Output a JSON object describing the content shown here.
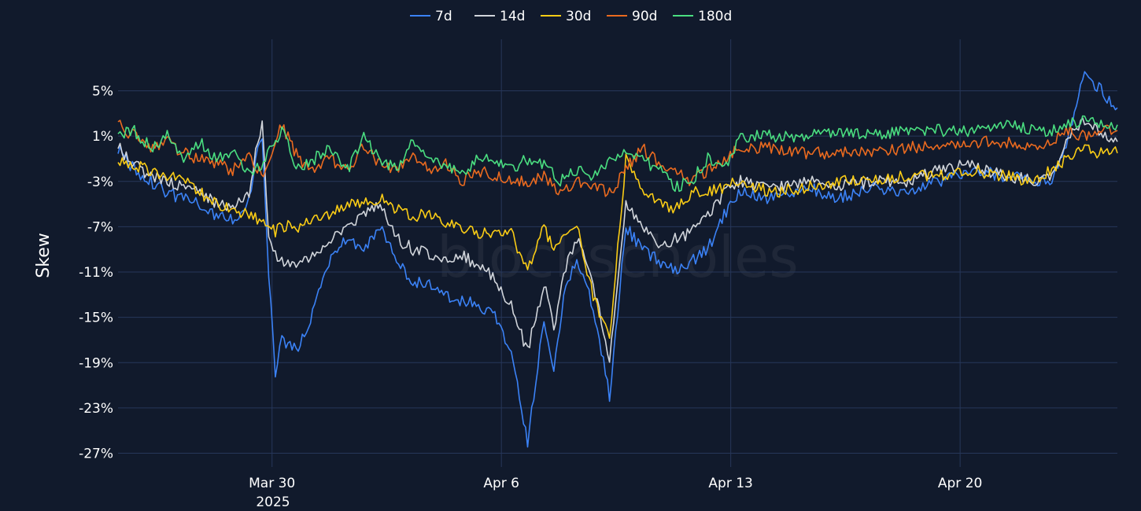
{
  "chart_data": {
    "type": "line",
    "watermark": "blockscholes",
    "ylabel": "Skew",
    "xlabel": "",
    "ylim": [
      -27.5,
      9.5
    ],
    "xlim": [
      0,
      30.5
    ],
    "y_ticks": [
      5,
      1,
      -3,
      -7,
      -11,
      -15,
      -19,
      -23,
      -27
    ],
    "y_tick_labels": [
      "5%",
      "1%",
      "-3%",
      "-7%",
      "-11%",
      "-15%",
      "-19%",
      "-23%",
      "-27%"
    ],
    "x_ticks": [
      4.7,
      11.7,
      18.7,
      25.7
    ],
    "x_tick_labels": [
      "Mar 30",
      "Apr 6",
      "Apr 13",
      "Apr 20"
    ],
    "x_sublabel": "2025",
    "legend_position": "top-center",
    "colors": {
      "background": "#111a2c",
      "grid": "#27375a",
      "series": [
        "#3b82f6",
        "#d1d5db",
        "#facc15",
        "#ea6a1f",
        "#4ade80"
      ]
    },
    "series": [
      {
        "name": "7d",
        "x": [
          0,
          0.5,
          1,
          1.5,
          2,
          2.5,
          3,
          3.5,
          4,
          4.2,
          4.4,
          4.6,
          4.8,
          5,
          5.5,
          6,
          6.5,
          7,
          7.5,
          8,
          8.5,
          9,
          9.5,
          10,
          10.5,
          11,
          11.5,
          12,
          12.5,
          13,
          13.3,
          13.6,
          14,
          14.5,
          15,
          15.5,
          16,
          16.5,
          17,
          17.5,
          18,
          18.5,
          19,
          20,
          21,
          22,
          23,
          24,
          25,
          26,
          27,
          28,
          28.5,
          29,
          29.5,
          30,
          30.5
        ],
        "values": [
          0,
          -2,
          -3,
          -4,
          -4.5,
          -5,
          -6,
          -6.5,
          -4.5,
          -1,
          1,
          -11,
          -20,
          -17,
          -18,
          -14,
          -10,
          -8,
          -9,
          -7,
          -10,
          -12,
          -12,
          -13,
          -13.5,
          -14,
          -15,
          -18,
          -26,
          -15,
          -20,
          -13,
          -10,
          -14,
          -22,
          -7,
          -9,
          -10,
          -11,
          -10,
          -9,
          -6,
          -4,
          -4.5,
          -3.5,
          -4.5,
          -3.5,
          -4,
          -3,
          -2,
          -2.5,
          -3,
          -3,
          1,
          6.5,
          5,
          3.5
        ]
      },
      {
        "name": "14d",
        "x": [
          0,
          0.5,
          1,
          1.5,
          2,
          2.5,
          3,
          3.5,
          4,
          4.2,
          4.4,
          4.6,
          4.8,
          5,
          5.5,
          6,
          6.5,
          7,
          7.5,
          8,
          8.5,
          9,
          9.5,
          10,
          10.5,
          11,
          11.5,
          12,
          12.5,
          13,
          13.3,
          13.6,
          14,
          14.5,
          15,
          15.5,
          16,
          16.5,
          17,
          17.5,
          18,
          18.5,
          19,
          20,
          21,
          22,
          23,
          24,
          25,
          26,
          27,
          28,
          28.5,
          29,
          29.5,
          30,
          30.5
        ],
        "values": [
          0,
          -1.5,
          -2.5,
          -3,
          -3.5,
          -4,
          -5,
          -5.5,
          -4,
          -0.5,
          2,
          -8,
          -9.5,
          -10,
          -10.5,
          -9.5,
          -8,
          -7,
          -6,
          -5,
          -8,
          -9,
          -9.5,
          -10,
          -9.5,
          -10.5,
          -11.5,
          -14,
          -18,
          -12,
          -16,
          -11,
          -8,
          -12,
          -19,
          -5,
          -7,
          -9,
          -8,
          -7.5,
          -6,
          -4,
          -3,
          -3.5,
          -3,
          -3.5,
          -3,
          -3,
          -2,
          -1.5,
          -2.5,
          -3,
          -2.5,
          1,
          2.5,
          1.5,
          0.5
        ]
      },
      {
        "name": "30d",
        "x": [
          0,
          0.5,
          1,
          1.5,
          2,
          2.5,
          3,
          3.5,
          4,
          4.5,
          4.8,
          5,
          5.5,
          6,
          6.5,
          7,
          7.5,
          8,
          8.5,
          9,
          9.5,
          10,
          10.5,
          11,
          11.5,
          12,
          12.5,
          13,
          13.3,
          13.6,
          14,
          14.5,
          15,
          15.5,
          16,
          16.5,
          17,
          17.5,
          18,
          18.5,
          19,
          20,
          21,
          22,
          23,
          24,
          25,
          26,
          27,
          28,
          28.5,
          29,
          29.5,
          30,
          30.5
        ],
        "values": [
          -1,
          -1.5,
          -2,
          -2.5,
          -3,
          -4,
          -5,
          -5.5,
          -6,
          -6.5,
          -7.5,
          -7,
          -7,
          -6.5,
          -6,
          -5,
          -5,
          -4.5,
          -5.5,
          -6,
          -6,
          -6.5,
          -7,
          -7.5,
          -7.5,
          -7.5,
          -11,
          -7,
          -9,
          -8,
          -7,
          -13,
          -17,
          -1,
          -4,
          -5,
          -5.5,
          -4,
          -4,
          -3.5,
          -3,
          -4,
          -3.5,
          -3,
          -3,
          -2.5,
          -2.5,
          -2,
          -2.5,
          -3,
          -2,
          -1,
          0,
          -0.5,
          -0.5
        ]
      },
      {
        "name": "90d",
        "x": [
          0,
          0.5,
          1,
          1.5,
          2,
          2.5,
          3,
          3.5,
          4,
          4.5,
          5,
          5.5,
          6,
          6.5,
          7,
          7.5,
          8,
          8.5,
          9,
          9.5,
          10,
          10.5,
          11,
          11.5,
          12,
          12.5,
          13,
          13.5,
          14,
          14.5,
          15,
          15.5,
          16,
          16.5,
          17,
          17.5,
          18,
          18.5,
          19,
          20,
          21,
          22,
          23,
          24,
          25,
          26,
          27,
          28,
          28.5,
          29,
          29.5,
          30,
          30.5
        ],
        "values": [
          2,
          1,
          0,
          0.5,
          -0.5,
          -1,
          -1.5,
          -2,
          -1,
          -2.5,
          2,
          -1,
          -2,
          -1,
          -2,
          0,
          -1.5,
          -2,
          -1,
          -2,
          -1.5,
          -3,
          -2,
          -2.5,
          -3,
          -3,
          -2.5,
          -4,
          -3,
          -3.5,
          -4,
          -2,
          0,
          -1.5,
          -2,
          -3,
          -2,
          -1,
          0,
          0,
          -0.5,
          -0.5,
          -0.5,
          0,
          0,
          0.5,
          0.5,
          0,
          0.5,
          1.5,
          1,
          1.5,
          1.5
        ]
      },
      {
        "name": "180d",
        "x": [
          0,
          0.5,
          1,
          1.5,
          2,
          2.5,
          3,
          3.5,
          4,
          4.5,
          5,
          5.5,
          6,
          6.5,
          7,
          7.5,
          8,
          8.5,
          9,
          9.5,
          10,
          10.5,
          11,
          11.5,
          12,
          12.5,
          13,
          13.5,
          14,
          14.5,
          15,
          15.5,
          16,
          16.5,
          17,
          17.5,
          18,
          18.5,
          19,
          20,
          21,
          22,
          23,
          24,
          25,
          26,
          27,
          28,
          28.5,
          29,
          29.5,
          30,
          30.5
        ],
        "values": [
          1,
          1.5,
          0,
          1,
          -1,
          0.5,
          -1,
          -0.5,
          -2.5,
          -1,
          1.5,
          -2,
          -1,
          0,
          -2,
          1,
          -1,
          -2,
          0.5,
          -1,
          -1.5,
          -2.5,
          -1,
          -1,
          -2,
          -1,
          -1.5,
          -3,
          -2,
          -2.5,
          -1,
          0,
          -1,
          -2,
          -3.5,
          -3,
          -1,
          -2,
          1,
          1,
          1,
          1.5,
          1,
          1.5,
          1.5,
          1.5,
          2,
          1.5,
          1.5,
          2,
          2.5,
          2,
          2
        ]
      }
    ]
  }
}
